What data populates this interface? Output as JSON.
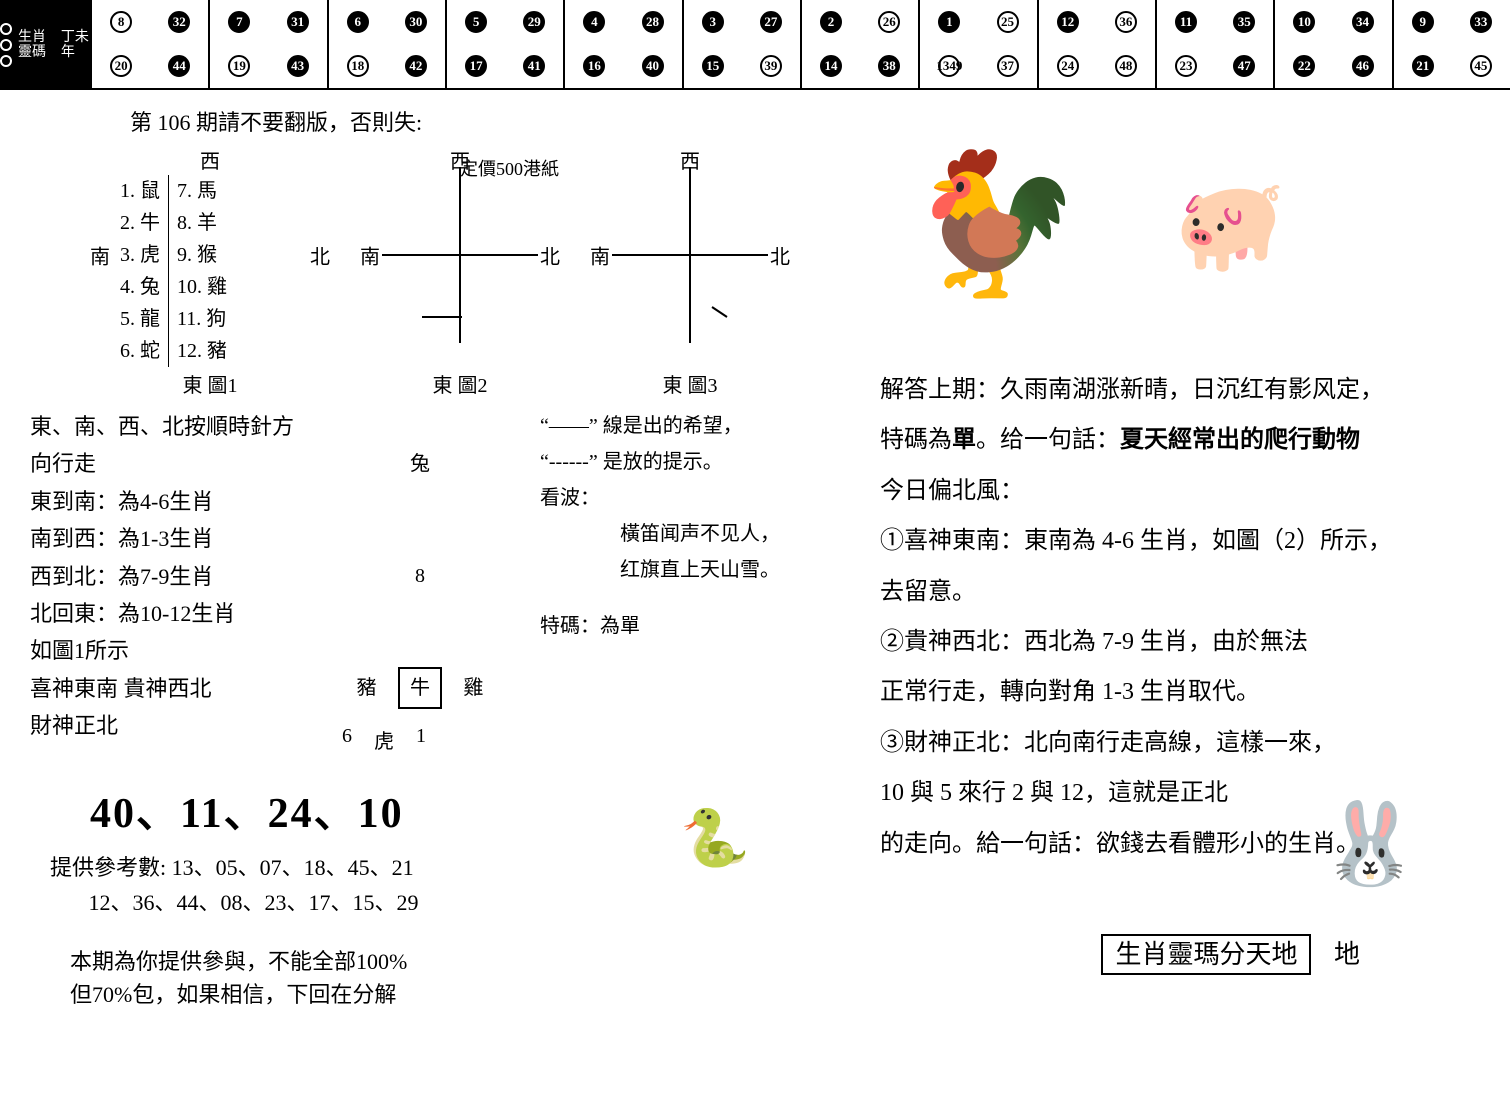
{
  "banner": {
    "vertical1": "000",
    "vertical2": "生肖靈碼",
    "vertical3": "丁未年",
    "cells": [
      {
        "nums": [
          "8",
          "32",
          "20",
          "44"
        ],
        "filled": [
          0,
          1,
          0,
          1
        ]
      },
      {
        "nums": [
          "7",
          "31",
          "19",
          "43"
        ],
        "filled": [
          1,
          1,
          0,
          1
        ]
      },
      {
        "nums": [
          "6",
          "30",
          "18",
          "42"
        ],
        "filled": [
          1,
          1,
          0,
          1
        ]
      },
      {
        "nums": [
          "5",
          "29",
          "17",
          "41"
        ],
        "filled": [
          1,
          1,
          1,
          1
        ]
      },
      {
        "nums": [
          "4",
          "28",
          "16",
          "40"
        ],
        "filled": [
          1,
          1,
          1,
          1
        ]
      },
      {
        "nums": [
          "3",
          "27",
          "15",
          "39"
        ],
        "filled": [
          1,
          1,
          1,
          0
        ]
      },
      {
        "nums": [
          "2",
          "26",
          "14",
          "38"
        ],
        "filled": [
          1,
          0,
          1,
          1
        ]
      },
      {
        "nums": [
          "1",
          "25",
          "1349",
          "37"
        ],
        "filled": [
          1,
          0,
          0,
          0
        ]
      },
      {
        "nums": [
          "12",
          "36",
          "24",
          "48"
        ],
        "filled": [
          1,
          0,
          0,
          0
        ]
      },
      {
        "nums": [
          "11",
          "35",
          "23",
          "47"
        ],
        "filled": [
          1,
          1,
          0,
          1
        ]
      },
      {
        "nums": [
          "10",
          "34",
          "22",
          "46"
        ],
        "filled": [
          1,
          1,
          1,
          1
        ]
      },
      {
        "nums": [
          "9",
          "33",
          "21",
          "45"
        ],
        "filled": [
          1,
          1,
          1,
          0
        ]
      }
    ]
  },
  "issue_title": "第 106 期請不要翻版，否則失:",
  "price": "定價500港紙",
  "diagram_labels": {
    "d1": "東  圖1",
    "d2": "東  圖2",
    "d3": "東  圖3"
  },
  "dir": {
    "n": "西",
    "s": "東",
    "e": "北",
    "w": "南"
  },
  "zodiac_list_left": [
    "1. 鼠",
    "2. 牛",
    "3. 虎",
    "4. 兔",
    "5. 龍",
    "6. 蛇"
  ],
  "zodiac_list_right": [
    "7. 馬",
    "8. 羊",
    "9. 猴",
    "10. 雞",
    "11. 狗",
    "12. 豬"
  ],
  "rules_left": [
    "東、南、西、北按順時針方向行走",
    "東到南：為4-6生肖",
    "南到西：為1-3生肖",
    "西到北：為7-9生肖",
    "北回東：為10-12生肖",
    "如圖1所示",
    "喜神東南  貴神西北",
    "財神正北"
  ],
  "rules_mid": {
    "top": "兔",
    "top_n": "8",
    "left": "豬",
    "center": "牛",
    "right": "雞",
    "bl": "6",
    "bottom": "虎",
    "br": "1"
  },
  "rules_right": {
    "line1": "“——” 線是出的希望，",
    "line2": "“------” 是放的提示。",
    "line3": "看波：",
    "poem1": "橫笛闻声不见人，",
    "poem2": "红旗直上天山雪。",
    "te": "特碼：為單"
  },
  "bignums": "40、11、24、10",
  "refnums_label": "提供參考數:",
  "refnums1": "13、05、07、18、45、21",
  "refnums2": "12、36、44、08、23、17、15、29",
  "disclaimer1": "本期為你提供參與，不能全部100%",
  "disclaimer2": "但70%包，如果相信，下回在分解",
  "analysis": {
    "l1": "解答上期：久雨南湖涨新晴，日沉红有影风定，",
    "l2a": "特碼為",
    "l2b": "單",
    "l2c": "。给一句話：",
    "l2d": "夏天經常出的爬行動物",
    "l3": "今日偏北風：",
    "l4": "①喜神東南：東南為 4-6 生肖，如圖（2）所示，",
    "l5": "去留意。",
    "l6": "②貴神西北：西北為 7-9 生肖，由於無法",
    "l7": "正常行走，轉向對角 1-3 生肖取代。",
    "l8": "③財神正北：北向南行走高線，這樣一來，",
    "l9": "10 與 5 來行 2 與 12，這就是正北",
    "l10": "的走向。給一句話：欲錢去看體形小的生肖。"
  },
  "footer_box": "生肖靈瑪分天地",
  "footer_extra": "地"
}
